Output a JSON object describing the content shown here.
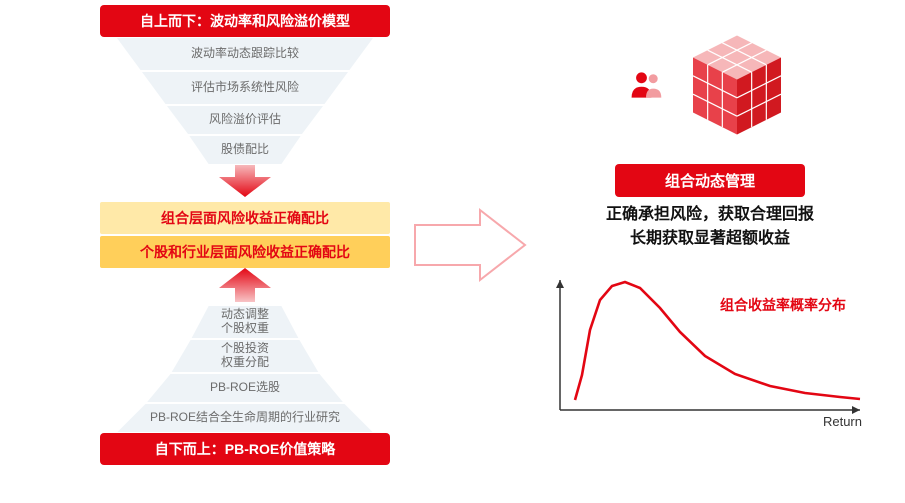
{
  "colors": {
    "brand_red": "#e30613",
    "light_red": "#f7a8ac",
    "trap_fill": "#eef3f7",
    "trap_stroke": "#ffffff",
    "text_grey": "#6b6b6b",
    "mid_upper_bg": "#ffe9a8",
    "mid_lower_bg": "#ffcf5a",
    "axis": "#333333",
    "desc_text": "#111111",
    "bg": "#ffffff"
  },
  "left": {
    "top_banner": "自上而下：波动率和风险溢价模型",
    "top_layers": [
      {
        "label": "波动率动态跟踪比较",
        "topW": 260,
        "botW": 210,
        "h": 34
      },
      {
        "label": "评估市场系统性风险",
        "topW": 210,
        "botW": 160,
        "h": 34
      },
      {
        "label": "风险溢价评估",
        "topW": 160,
        "botW": 115,
        "h": 30
      },
      {
        "label": "股债配比",
        "topW": 115,
        "botW": 74,
        "h": 30
      }
    ],
    "mid_upper": "组合层面风险收益正确配比",
    "mid_lower": "个股和行业层面风险收益正确配比",
    "bottom_layers": [
      {
        "label": "动态调整\n个股权重",
        "topW": 74,
        "botW": 110,
        "h": 34
      },
      {
        "label": "个股投资\n权重分配",
        "topW": 110,
        "botW": 150,
        "h": 34
      },
      {
        "label": "PB-ROE选股",
        "topW": 150,
        "botW": 200,
        "h": 30
      },
      {
        "label": "PB-ROE结合全生命周期的行业研究",
        "topW": 200,
        "botW": 260,
        "h": 30
      }
    ],
    "bottom_banner": "自下而上：PB-ROE价值策略"
  },
  "right": {
    "tag": "组合动态管理",
    "desc_line1": "正确承担风险，获取合理回报",
    "desc_line2": "长期获取显著超额收益",
    "curve_label": "组合收益率概率分布",
    "axis_x_label": "Return",
    "curve": {
      "type": "line",
      "color": "#e30613",
      "line_width": 2.6,
      "xlim": [
        0,
        300
      ],
      "ylim": [
        0,
        140
      ],
      "points": [
        [
          15,
          130
        ],
        [
          22,
          105
        ],
        [
          30,
          60
        ],
        [
          40,
          30
        ],
        [
          52,
          16
        ],
        [
          65,
          12
        ],
        [
          80,
          18
        ],
        [
          100,
          38
        ],
        [
          120,
          62
        ],
        [
          145,
          86
        ],
        [
          175,
          104
        ],
        [
          210,
          116
        ],
        [
          245,
          123
        ],
        [
          280,
          127
        ],
        [
          300,
          129
        ]
      ],
      "axis_color": "#333333",
      "background": "#ffffff"
    }
  },
  "big_arrow": {
    "stroke": "#f7a8ac",
    "fill": "#ffffff",
    "stroke_width": 2
  },
  "icons": {
    "people": "people-icon",
    "cube": "cube-icon"
  }
}
